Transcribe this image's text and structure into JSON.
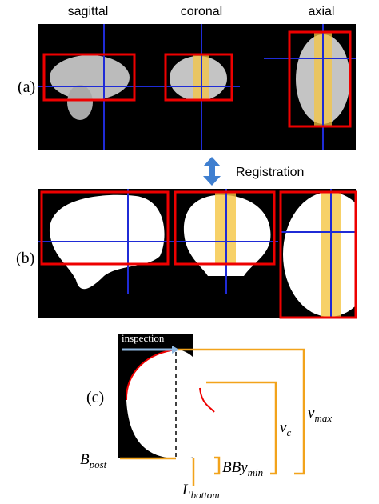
{
  "views": [
    "sagittal",
    "coronal",
    "axial"
  ],
  "panels": {
    "a": "(a)",
    "b": "(b)",
    "c": "(c)"
  },
  "registration": "Registration",
  "inspection": "inspection",
  "symbols": {
    "b_post": {
      "base": "B",
      "sub": "post"
    },
    "l_bottom": {
      "base": "L",
      "sub": "bottom"
    },
    "bby_min": {
      "base": "BBy",
      "sub": "min"
    },
    "v_c": {
      "base": "v",
      "sub": "c"
    },
    "v_max": {
      "base": "v",
      "sub": "max"
    }
  }
}
